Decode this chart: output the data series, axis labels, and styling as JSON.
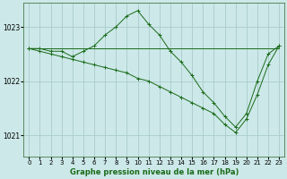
{
  "xlabel": "Graphe pression niveau de la mer (hPa)",
  "background_color": "#cce8e8",
  "grid_color": "#aacccc",
  "line_color": "#1a6b1a",
  "xlim": [
    -0.5,
    23.5
  ],
  "ylim": [
    1020.6,
    1023.45
  ],
  "yticks": [
    1021,
    1022,
    1023
  ],
  "xticks": [
    0,
    1,
    2,
    3,
    4,
    5,
    6,
    7,
    8,
    9,
    10,
    11,
    12,
    13,
    14,
    15,
    16,
    17,
    18,
    19,
    20,
    21,
    22,
    23
  ],
  "series": [
    {
      "x": [
        0,
        1,
        2,
        3,
        4,
        5,
        6,
        7,
        8,
        9,
        10,
        11,
        12,
        13,
        14,
        15,
        16,
        17,
        18,
        19,
        20,
        21,
        22,
        23
      ],
      "y": [
        1022.6,
        1022.6,
        1022.6,
        1022.6,
        1022.6,
        1022.6,
        1022.6,
        1022.6,
        1022.6,
        1022.6,
        1022.6,
        1022.6,
        1022.6,
        1022.6,
        1022.6,
        1022.6,
        1022.6,
        1022.6,
        1022.6,
        1022.6,
        1022.6,
        1022.6,
        1022.6,
        1022.6
      ]
    },
    {
      "x": [
        0,
        1,
        2,
        3,
        4,
        5,
        6,
        7,
        8,
        9,
        10,
        11,
        12,
        13,
        14,
        15,
        16,
        17,
        18,
        19,
        20,
        21,
        22,
        23
      ],
      "y": [
        1022.6,
        1022.6,
        1022.55,
        1022.55,
        1022.45,
        1022.55,
        1022.65,
        1022.85,
        1023.0,
        1023.2,
        1023.3,
        1023.05,
        1022.85,
        1022.55,
        1022.35,
        1022.1,
        1021.8,
        1021.6,
        1021.35,
        1021.15,
        1021.4,
        1022.0,
        1022.5,
        1022.65
      ]
    },
    {
      "x": [
        0,
        1,
        2,
        3,
        4,
        5,
        6,
        7,
        8,
        9,
        10,
        11,
        12,
        13,
        14,
        15,
        16,
        17,
        18,
        19,
        20,
        21,
        22,
        23
      ],
      "y": [
        1022.6,
        1022.55,
        1022.5,
        1022.45,
        1022.4,
        1022.35,
        1022.3,
        1022.25,
        1022.2,
        1022.15,
        1022.05,
        1022.0,
        1021.9,
        1021.8,
        1021.7,
        1021.6,
        1021.5,
        1021.4,
        1021.2,
        1021.05,
        1021.3,
        1021.75,
        1022.3,
        1022.65
      ]
    }
  ]
}
